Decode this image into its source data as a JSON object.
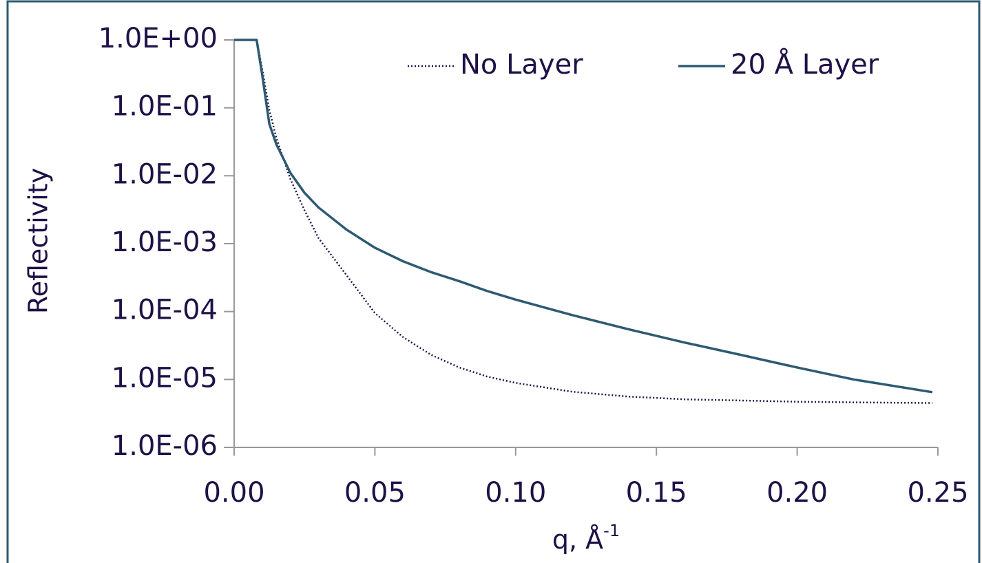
{
  "chart_data": {
    "type": "line",
    "y_label": "Reflectivity",
    "x_label": "q, Å",
    "x_label_superscript": "-1",
    "log_y": true,
    "legend": "top",
    "x": [
      0,
      0.008,
      0.01,
      0.0125,
      0.015,
      0.02,
      0.025,
      0.03,
      0.04,
      0.05,
      0.06,
      0.07,
      0.08,
      0.09,
      0.1,
      0.12,
      0.14,
      0.16,
      0.18,
      0.2,
      0.22,
      0.248
    ],
    "series": [
      {
        "name": "No Layer",
        "color": "#1f1147",
        "line_style": "dotted",
        "values": [
          1,
          1,
          0.37,
          0.093,
          0.036,
          0.0089,
          0.0031,
          0.0012,
          0.00034,
          9.5e-05,
          4.2e-05,
          2.3e-05,
          1.5e-05,
          1.1e-05,
          8.9e-06,
          6.6e-06,
          5.6e-06,
          5.1e-06,
          4.9e-06,
          4.7e-06,
          4.6e-06,
          4.5e-06
        ]
      },
      {
        "name": "20 Å Layer",
        "color": "#2e5a73",
        "line_style": "solid",
        "values": [
          1,
          1,
          0.3,
          0.058,
          0.029,
          0.011,
          0.0056,
          0.0034,
          0.0016,
          0.00087,
          0.00055,
          0.00038,
          0.00028,
          0.0002,
          0.00015,
          8.9e-05,
          5.5e-05,
          3.5e-05,
          2.3e-05,
          1.5e-05,
          1e-05,
          6.5e-06
        ]
      }
    ],
    "xlim": [
      0,
      0.25
    ],
    "xticks": [
      {
        "value": 0,
        "label": "0.00"
      },
      0.05,
      {
        "value": 0.1,
        "label": "0.10"
      },
      0.15,
      {
        "value": 0.2,
        "label": "0.20"
      },
      0.25
    ],
    "ylim": [
      1e-06,
      1
    ],
    "yticks": [
      {
        "value": 1,
        "label": "1.0E+00"
      },
      {
        "value": 0.1,
        "label": "1.0E-01"
      },
      {
        "value": 0.01,
        "label": "1.0E-02"
      },
      {
        "value": 0.001,
        "label": "1.0E-03"
      },
      {
        "value": 0.0001,
        "label": "1.0E-04"
      },
      {
        "value": 1e-05,
        "label": "1.0E-05"
      },
      {
        "value": 1e-06,
        "label": "1.0E-06"
      }
    ]
  }
}
